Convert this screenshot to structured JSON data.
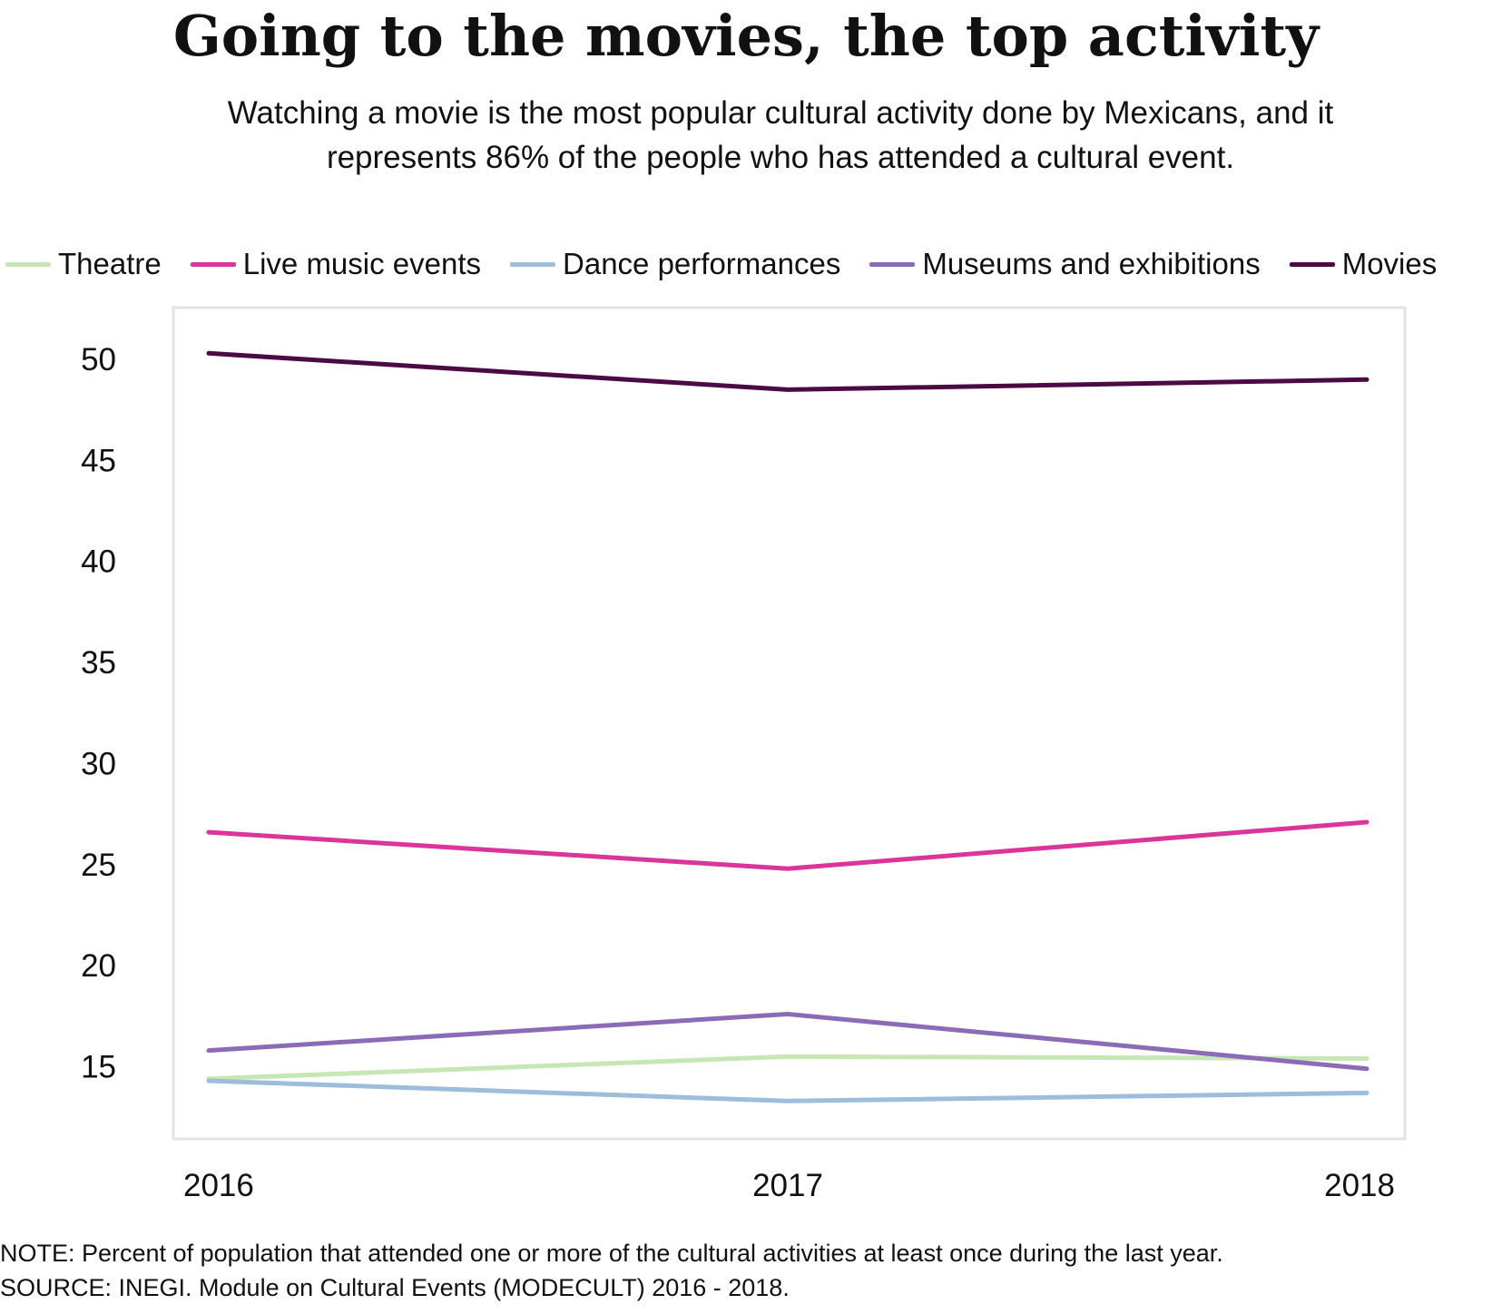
{
  "title": "Going to the movies, the top activity",
  "subtitle_line1": "Watching a movie is the most popular cultural activity done by Mexicans, and it",
  "subtitle_line2": "represents 86% of the people who has attended a cultural event.",
  "note": "NOTE: Percent of population that attended one or more  of the cultural activities at least once during the last year.",
  "source": "SOURCE: INEGI. Module on Cultural Events (MODECULT) 2016 - 2018.",
  "colors": {
    "theatre": "#c6e7b3",
    "live_music": "#d9359b",
    "dance": "#9dbddc",
    "museums": "#8b6bb5",
    "movies": "#4b0a44",
    "frame": "#e3e3e3"
  },
  "chart_data": {
    "type": "line",
    "title": "Going to the movies, the top activity",
    "x": [
      "2016",
      "2017",
      "2018"
    ],
    "xlabel": "",
    "ylabel": "",
    "ylim": [
      13.3,
      51.6
    ],
    "yticks": [
      15,
      20,
      25,
      30,
      35,
      40,
      45,
      50
    ],
    "ytick_labels": [
      "15",
      "20",
      "25",
      "30",
      "35",
      "40",
      "45",
      "50"
    ],
    "grid": false,
    "legend_position": "top",
    "series": [
      {
        "name": "Theatre",
        "color": "#c6e7b3",
        "values": [
          14.4,
          15.5,
          15.4
        ]
      },
      {
        "name": "Live music events",
        "color": "#d9359b",
        "values": [
          26.6,
          24.8,
          27.1
        ]
      },
      {
        "name": "Dance performances",
        "color": "#9dbddc",
        "values": [
          14.3,
          13.3,
          13.7
        ]
      },
      {
        "name": "Museums and exhibitions",
        "color": "#8b6bb5",
        "values": [
          15.8,
          17.6,
          14.9
        ]
      },
      {
        "name": "Movies",
        "color": "#4b0a44",
        "values": [
          50.3,
          48.5,
          49.0
        ]
      }
    ]
  }
}
